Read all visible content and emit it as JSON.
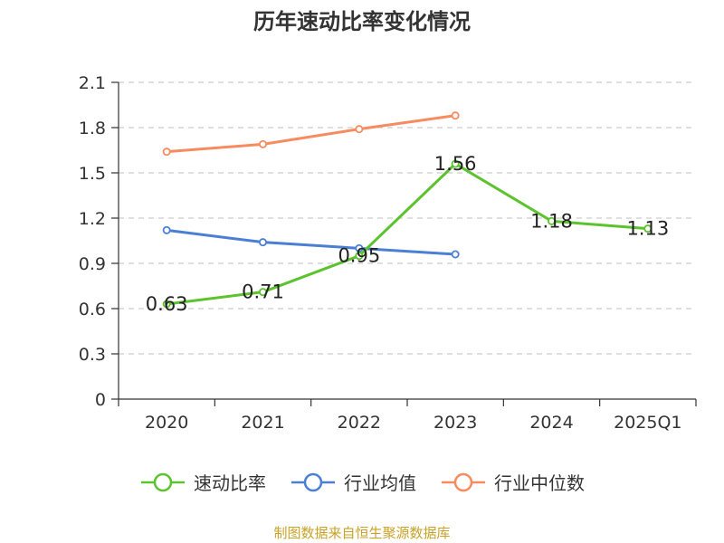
{
  "colors": {
    "quick_ratio": "#5cc22e",
    "industry_avg": "#4a7fd4",
    "industry_median": "#f78b5f",
    "grid": "#cccccc",
    "axis": "#333333",
    "source": "#c9a227"
  },
  "chart_data": {
    "type": "line",
    "title": "历年速动比率变化情况",
    "categories": [
      "2020",
      "2021",
      "2022",
      "2023",
      "2024",
      "2025Q1"
    ],
    "ylim": [
      0,
      2.1
    ],
    "yticks": [
      "0",
      "0.3",
      "0.6",
      "0.9",
      "1.2",
      "1.5",
      "1.8",
      "2.1"
    ],
    "grid": true,
    "legend_position": "bottom",
    "series": [
      {
        "key": "quick_ratio",
        "name": "速动比率",
        "values": [
          0.63,
          0.71,
          0.95,
          1.56,
          1.18,
          1.13
        ],
        "labels": [
          "0.63",
          "0.71",
          "0.95",
          "1.56",
          "1.18",
          "1.13"
        ]
      },
      {
        "key": "industry_avg",
        "name": "行业均值",
        "values": [
          1.12,
          1.04,
          1.0,
          0.96,
          null,
          null
        ]
      },
      {
        "key": "industry_median",
        "name": "行业中位数",
        "values": [
          1.64,
          1.69,
          1.79,
          1.88,
          null,
          null
        ]
      }
    ]
  },
  "source": "制图数据来自恒生聚源数据库"
}
